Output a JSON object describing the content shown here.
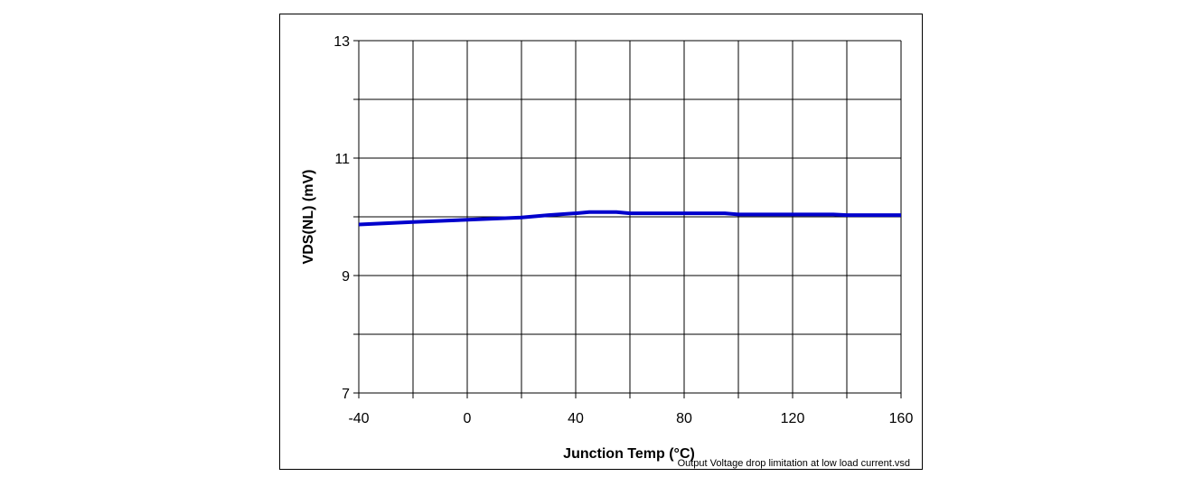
{
  "chart_data": {
    "type": "line",
    "title": "",
    "xlabel": "Junction Temp (°C)",
    "ylabel": "VDS(NL)  (mV)",
    "xlim": [
      -40,
      160
    ],
    "ylim": [
      7,
      13
    ],
    "xticks": [
      -40,
      -20,
      0,
      20,
      40,
      60,
      80,
      100,
      120,
      140,
      160
    ],
    "xtick_labels": [
      "-40",
      "",
      "0",
      "",
      "40",
      "",
      "80",
      "",
      "120",
      "",
      "160"
    ],
    "yticks": [
      7,
      8,
      9,
      10,
      11,
      12,
      13
    ],
    "ytick_labels": [
      "7",
      "",
      "9",
      "",
      "11",
      "",
      "13"
    ],
    "grid": true,
    "series": [
      {
        "color": "#0000cc",
        "x": [
          -40,
          -20,
          0,
          20,
          30,
          40,
          45,
          55,
          60,
          80,
          95,
          100,
          120,
          135,
          140,
          160
        ],
        "y": [
          9.87,
          9.91,
          9.95,
          9.99,
          10.03,
          10.06,
          10.08,
          10.08,
          10.06,
          10.06,
          10.06,
          10.04,
          10.04,
          10.04,
          10.03,
          10.03
        ]
      }
    ],
    "footnote": "Output Voltage drop limitation at low load current.vsd"
  }
}
